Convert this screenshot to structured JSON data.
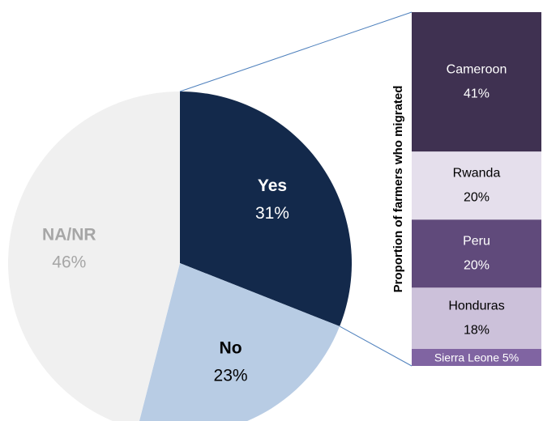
{
  "chart_data": [
    {
      "type": "pie",
      "categories": [
        "Yes",
        "No",
        "NA/NR"
      ],
      "values": [
        31,
        23,
        46
      ],
      "value_labels": [
        "31%",
        "23%",
        "46%"
      ],
      "colors": [
        "#13294b",
        "#b8cce4",
        "#f0f0f0"
      ],
      "label_colors": [
        "#ffffff",
        "#000000",
        "#a6a6a6"
      ]
    },
    {
      "type": "stacked-bar",
      "ylabel": "Proportion of farmers who migrated",
      "categories": [
        "Cameroon",
        "Rwanda",
        "Peru",
        "Honduras",
        "Sierra Leone"
      ],
      "values": [
        41,
        20,
        20,
        18,
        5
      ],
      "value_labels": [
        "41%",
        "20%",
        "20%",
        "18%",
        "5%"
      ],
      "colors": [
        "#3f3151",
        "#e5dfec",
        "#604a7b",
        "#ccc1da",
        "#8064a2"
      ],
      "label_colors": [
        "#ffffff",
        "#000000",
        "#ffffff",
        "#000000",
        "#ffffff"
      ]
    }
  ]
}
